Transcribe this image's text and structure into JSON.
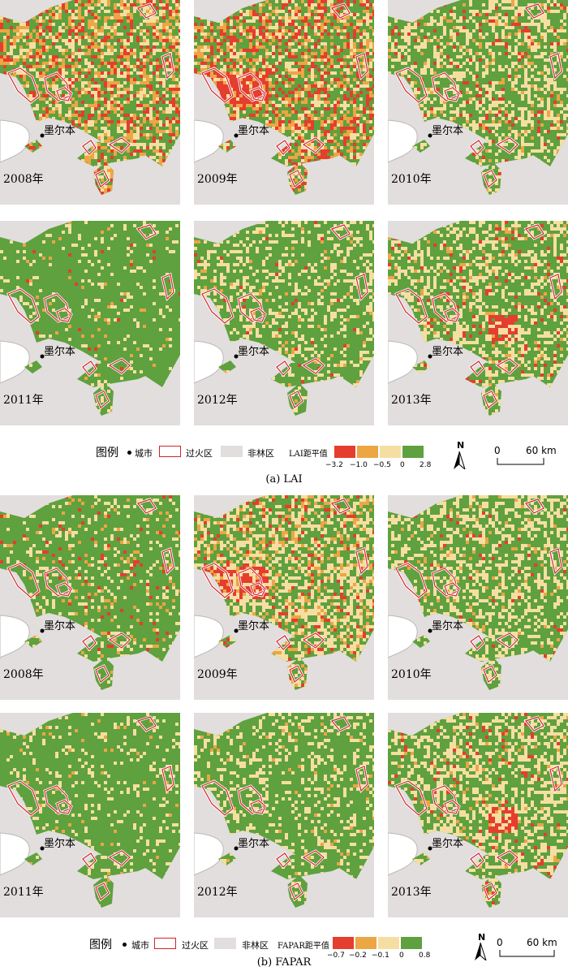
{
  "figure_a": {
    "caption": "(a) LAI",
    "legend": {
      "title": "图例",
      "city_label": "城市",
      "fire_label": "过火区",
      "nonforest_label": "非林区",
      "anomaly_label": "LAI距平值",
      "ticks": [
        "−3.2",
        "−1.0",
        "−0.5",
        "0",
        "2.8"
      ]
    },
    "panels": [
      {
        "year": "2008年",
        "city": "墨尔本"
      },
      {
        "year": "2009年",
        "city": "墨尔本"
      },
      {
        "year": "2010年",
        "city": "墨尔本"
      },
      {
        "year": "2011年",
        "city": "墨尔本"
      },
      {
        "year": "2012年",
        "city": "墨尔本"
      },
      {
        "year": "2013年",
        "city": "墨尔本"
      }
    ]
  },
  "figure_b": {
    "caption": "(b) FAPAR",
    "legend": {
      "title": "图例",
      "city_label": "城市",
      "fire_label": "过火区",
      "nonforest_label": "非林区",
      "anomaly_label": "FAPAR距平值",
      "ticks": [
        "−0.7",
        "−0.2",
        "−0.1",
        "0",
        "0.8"
      ]
    },
    "panels": [
      {
        "year": "2008年",
        "city": "墨尔本"
      },
      {
        "year": "2009年",
        "city": "墨尔本"
      },
      {
        "year": "2010年",
        "city": "墨尔本"
      },
      {
        "year": "2011年",
        "city": "墨尔本"
      },
      {
        "year": "2012年",
        "city": "墨尔本"
      },
      {
        "year": "2013年",
        "city": "墨尔本"
      }
    ]
  },
  "north_label": "N",
  "scale": {
    "zero": "0",
    "distance": "60 km"
  },
  "colors": {
    "non_forest": "#e2dedd",
    "strong_negative": "#e53d2e",
    "moderate_negative": "#eca643",
    "weak_negative": "#f6dea2",
    "positive": "#5ea13e",
    "fire_outline": "#d2232a",
    "city_dot": "#000000"
  },
  "panel_patterns": {
    "figure_a": [
      {
        "red": 0.14,
        "orange": 0.2,
        "yellow": 0.22
      },
      {
        "red": 0.2,
        "orange": 0.2,
        "yellow": 0.2
      },
      {
        "red": 0.05,
        "orange": 0.06,
        "yellow": 0.3
      },
      {
        "red": 0.01,
        "orange": 0.02,
        "yellow": 0.08
      },
      {
        "red": 0.01,
        "orange": 0.03,
        "yellow": 0.22
      },
      {
        "red": 0.04,
        "orange": 0.04,
        "yellow": 0.3
      }
    ],
    "figure_b": [
      {
        "red": 0.03,
        "orange": 0.05,
        "yellow": 0.12
      },
      {
        "red": 0.06,
        "orange": 0.12,
        "yellow": 0.35
      },
      {
        "red": 0.02,
        "orange": 0.04,
        "yellow": 0.3
      },
      {
        "red": 0.0,
        "orange": 0.02,
        "yellow": 0.12
      },
      {
        "red": 0.0,
        "orange": 0.02,
        "yellow": 0.2
      },
      {
        "red": 0.04,
        "orange": 0.04,
        "yellow": 0.35
      }
    ]
  }
}
